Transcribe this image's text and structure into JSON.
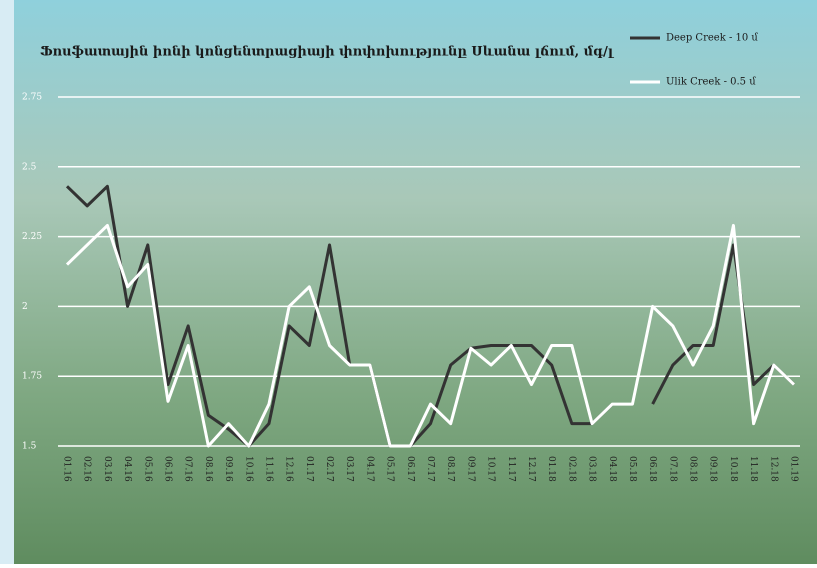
{
  "chart_data": {
    "type": "line",
    "title": "Ֆոսֆատային իոնի կոնցենտրացիայի փոփոխությունը Սևանա լճում, մգ/լ",
    "categories": [
      "01.16",
      "02.16",
      "03.16",
      "04.16",
      "05.16",
      "06.16",
      "07.16",
      "08.16",
      "09.16",
      "10.16",
      "11.16",
      "12.16",
      "01.17",
      "02.17",
      "03.17",
      "04.17",
      "05.17",
      "06.17",
      "07.17",
      "08.17",
      "09.17",
      "10.17",
      "11.17",
      "12.17",
      "01.18",
      "02.18",
      "03.18",
      "04.18",
      "05.18",
      "06.18",
      "07.18",
      "08.18",
      "09.18",
      "10.18",
      "11.18",
      "12.18",
      "01.19"
    ],
    "series": [
      {
        "name": "Deep Creek - 10 մ",
        "color": "#333333",
        "values": [
          2.43,
          2.36,
          2.43,
          2.0,
          2.22,
          1.72,
          1.93,
          1.61,
          1.56,
          1.5,
          1.58,
          1.93,
          1.86,
          2.22,
          1.79,
          1.79,
          1.5,
          1.5,
          1.58,
          1.79,
          1.85,
          1.86,
          1.86,
          1.86,
          1.79,
          1.58,
          1.58,
          1.65,
          null,
          1.65,
          1.79,
          1.86,
          1.86,
          2.22,
          1.72,
          1.79,
          1.72
        ]
      },
      {
        "name": "Ulik Creek - 0.5 մ",
        "color": "#ffffff",
        "values": [
          2.15,
          2.22,
          2.29,
          2.07,
          2.15,
          1.66,
          1.86,
          1.5,
          1.58,
          1.5,
          1.65,
          2.0,
          2.07,
          1.86,
          1.79,
          1.79,
          1.5,
          1.5,
          1.65,
          1.58,
          1.85,
          1.79,
          1.86,
          1.72,
          1.86,
          1.86,
          1.58,
          1.65,
          1.65,
          2.0,
          1.93,
          1.79,
          1.93,
          2.29,
          1.58,
          1.79,
          1.72
        ]
      }
    ],
    "ylim": [
      1.5,
      2.75
    ],
    "yticks": [
      1.5,
      1.75,
      2.0,
      2.25,
      2.5,
      2.75
    ],
    "grid": true
  }
}
